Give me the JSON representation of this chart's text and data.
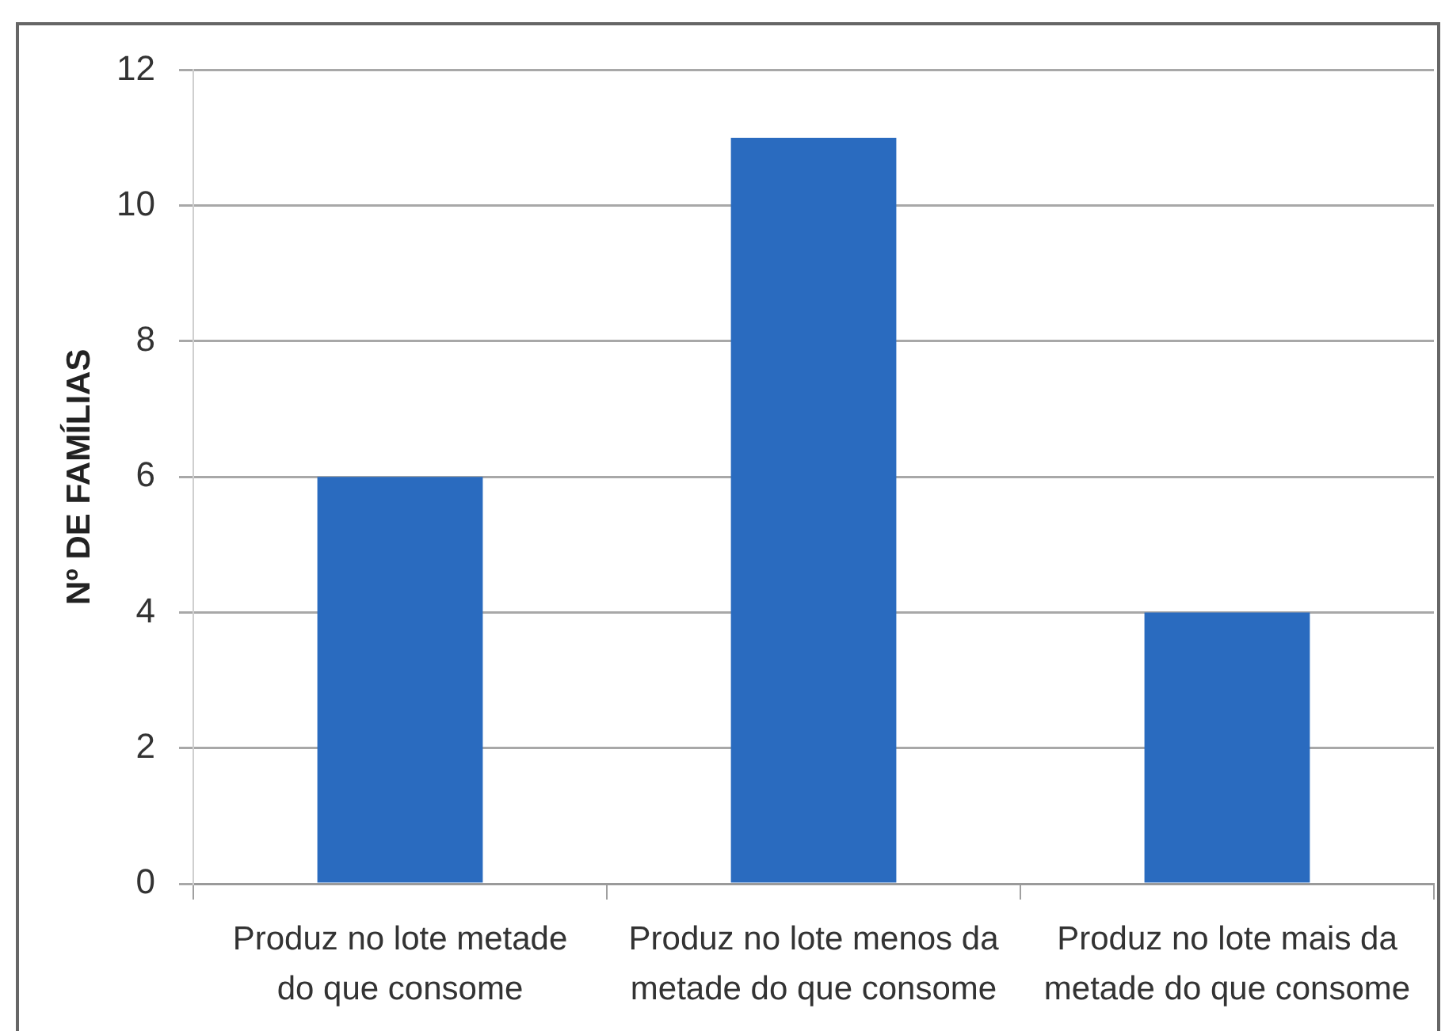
{
  "chart_data": {
    "type": "bar",
    "ylabel": "Nº DE FAMÍLIAS",
    "categories": [
      "Produz no lote metade do que consome",
      "Produz no lote menos da metade do que consome",
      "Produz no lote mais da metade do que consome"
    ],
    "values": [
      6,
      11,
      4
    ],
    "color": "#2a6bbf",
    "ylim": [
      0,
      12
    ],
    "yticks": [
      0,
      2,
      4,
      6,
      8,
      10,
      12
    ],
    "grid": "y"
  }
}
